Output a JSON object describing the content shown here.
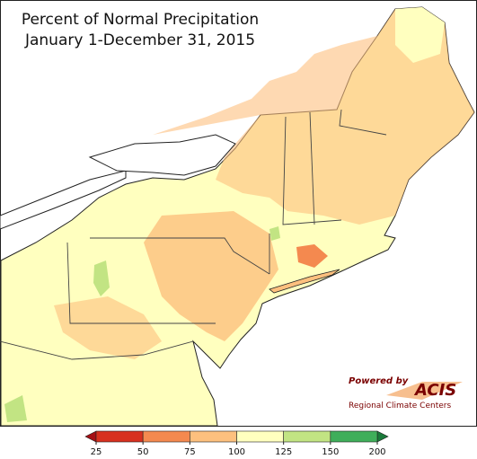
{
  "title": [
    "Percent of Normal Precipitation",
    "January 1-December 31, 2015"
  ],
  "legend": {
    "ticks": [
      25,
      50,
      75,
      100,
      125,
      150,
      200
    ],
    "colors": [
      "#a50f15",
      "#d7301f",
      "#f4894f",
      "#fdc07e",
      "#ffffbf",
      "#c2e483",
      "#3fae5a",
      "#1a7a3a"
    ]
  },
  "logo": {
    "powered": "Powered by",
    "name": "ACIS",
    "org": "Regional Climate Centers"
  }
}
